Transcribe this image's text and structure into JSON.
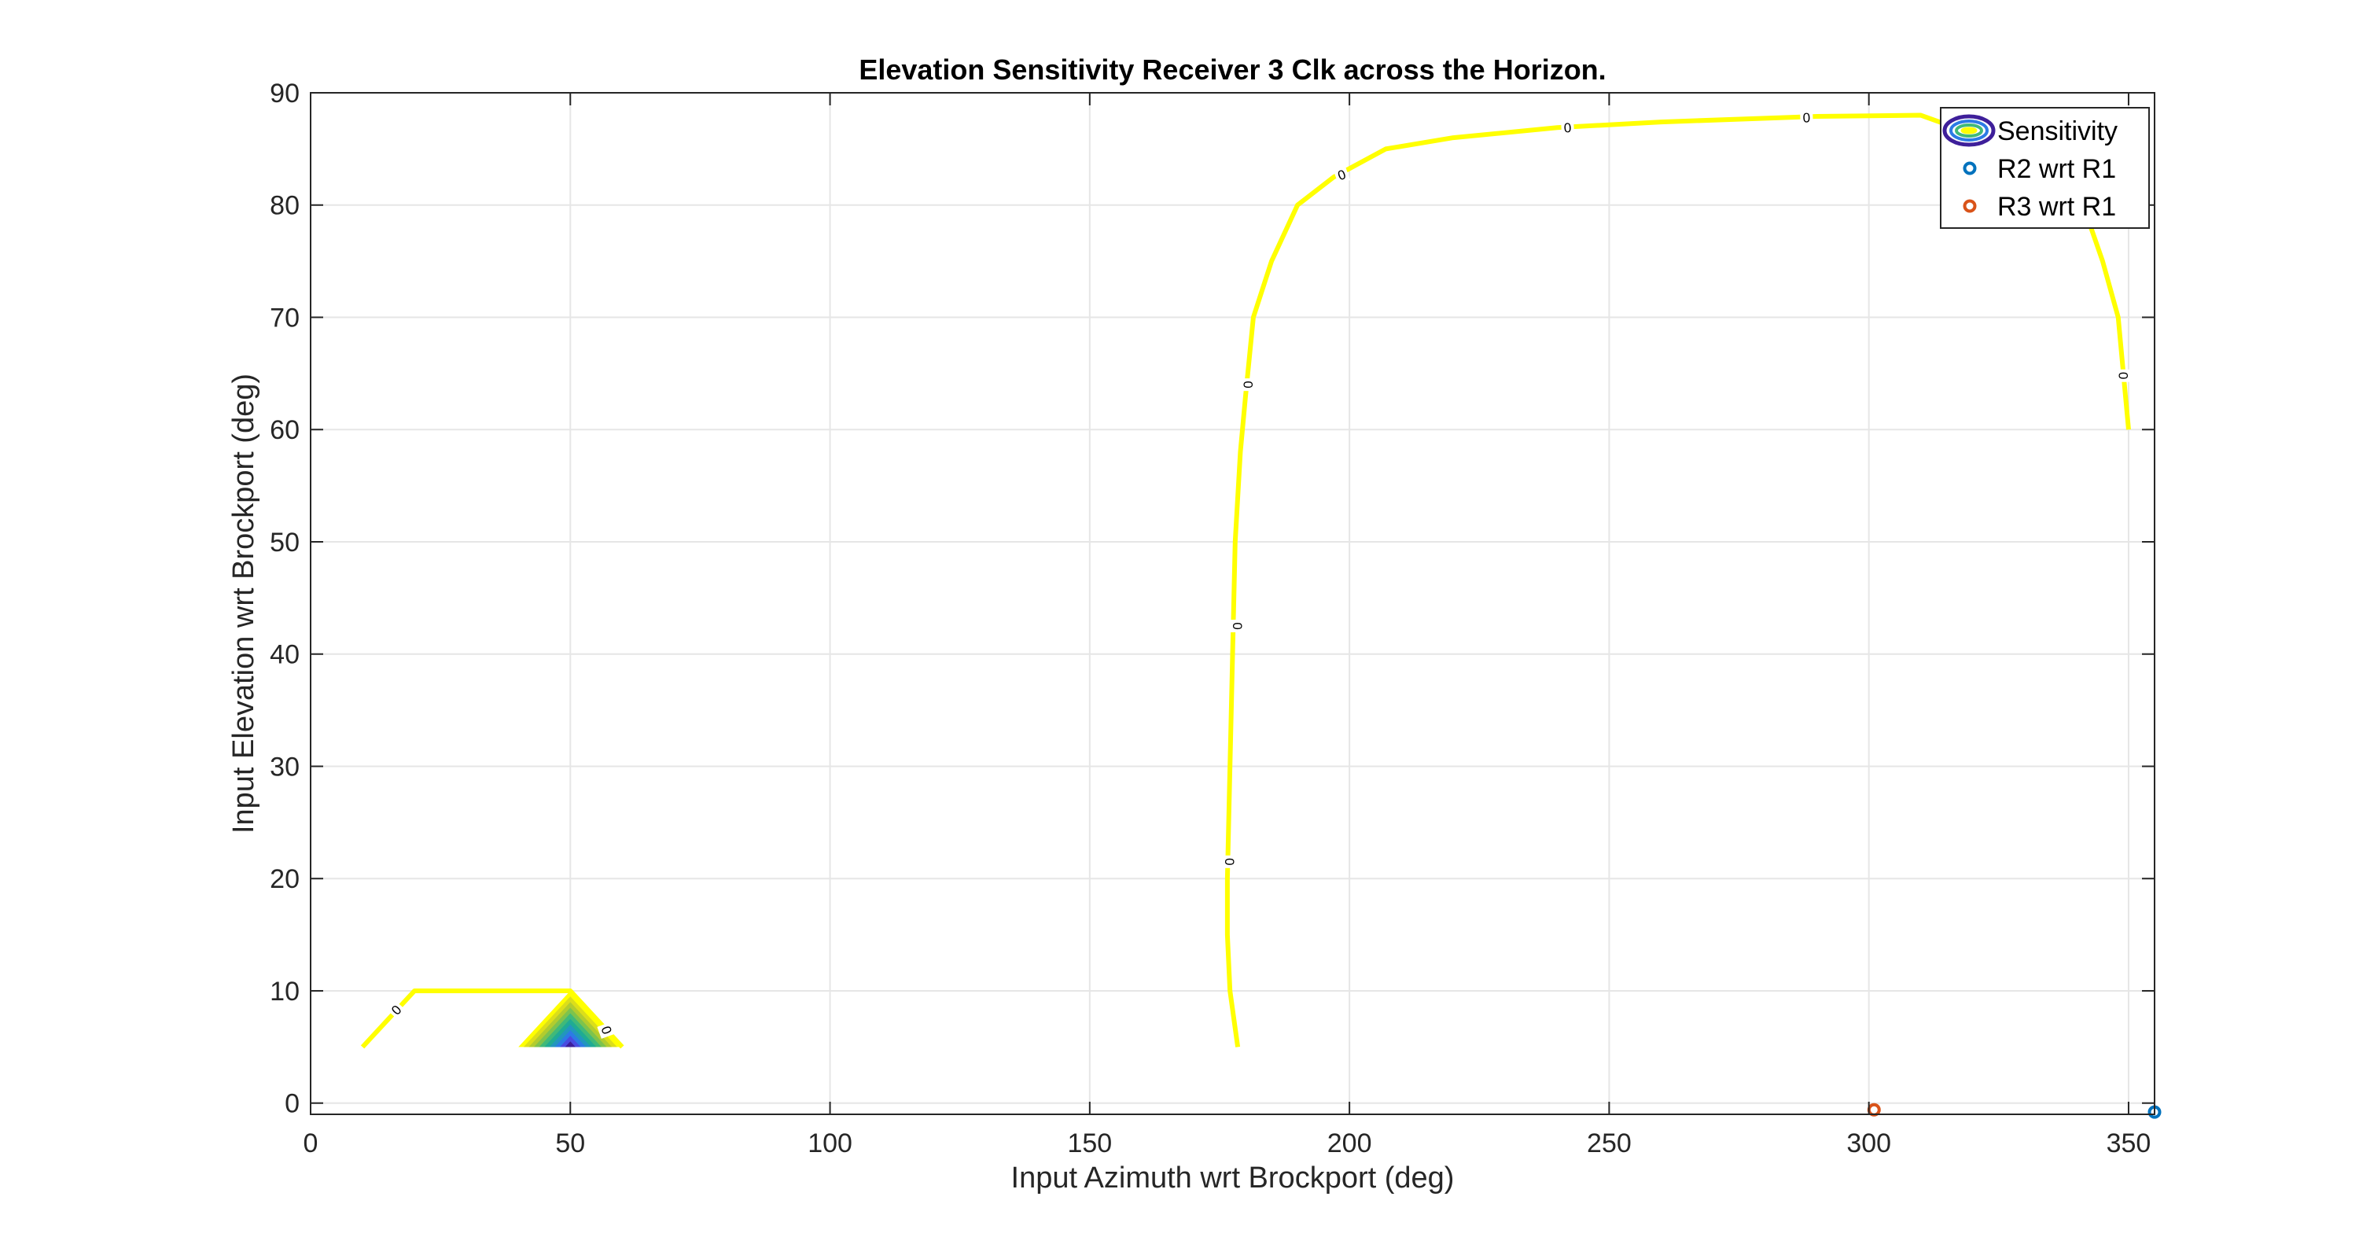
{
  "chart_data": {
    "type": "contour",
    "title": "Elevation Sensitivity Receiver 3 Clk across the Horizon.",
    "xlabel": "Input Azimuth wrt Brockport (deg)",
    "ylabel": "Input Elevation wrt Brockport (deg)",
    "xlim": [
      0,
      355
    ],
    "ylim": [
      -1,
      90
    ],
    "xticks": [
      0,
      50,
      100,
      150,
      200,
      250,
      300,
      350
    ],
    "yticks": [
      0,
      10,
      20,
      30,
      40,
      50,
      60,
      70,
      80,
      90
    ],
    "grid": true,
    "legend_location": "top-right",
    "legend": [
      {
        "label": "Sensitivity",
        "marker": "contour-icon"
      },
      {
        "label": "R2 wrt R1",
        "marker": "circle",
        "color": "#0072BD"
      },
      {
        "label": "R3 wrt R1",
        "marker": "circle",
        "color": "#D95319"
      }
    ],
    "colors": {
      "zero_contour": "#FFFF00",
      "r2": "#0072BD",
      "r3": "#D95319",
      "grid": "#E6E6E6",
      "axes": "#262626"
    },
    "contour_lines": [
      {
        "level": 0,
        "points": [
          [
            10,
            5
          ],
          [
            20,
            10
          ],
          [
            50,
            10
          ],
          [
            60,
            5
          ]
        ]
      },
      {
        "level": 0,
        "points": [
          [
            178.5,
            5
          ],
          [
            177,
            10
          ],
          [
            176.5,
            15
          ],
          [
            176.5,
            20
          ],
          [
            177,
            30
          ],
          [
            177.5,
            40
          ],
          [
            178,
            50
          ],
          [
            179,
            58
          ],
          [
            180,
            63
          ],
          [
            181.5,
            70
          ],
          [
            185,
            75
          ],
          [
            190,
            80
          ],
          [
            197,
            82.5
          ],
          [
            207,
            85
          ],
          [
            220,
            86
          ],
          [
            240,
            86.9
          ],
          [
            260,
            87.4
          ],
          [
            290,
            87.9
          ],
          [
            310,
            88
          ],
          [
            316,
            87
          ],
          [
            330,
            85.5
          ],
          [
            342,
            79
          ],
          [
            345,
            75
          ],
          [
            348,
            70
          ],
          [
            349,
            65
          ],
          [
            350,
            60
          ]
        ]
      }
    ],
    "filled_triangle": {
      "apex": [
        50,
        10
      ],
      "base_y": 5,
      "base_x": [
        40,
        60
      ],
      "levels": 10,
      "palette": [
        "#FFFF00",
        "#DCDE1A",
        "#B2CC2E",
        "#7DC34D",
        "#40B979",
        "#1FAB94",
        "#2296BE",
        "#2C7BE5",
        "#4A4CE0",
        "#3E1F9A"
      ]
    },
    "contour_labels": [
      {
        "text": "0",
        "x": 16.5,
        "y": 8.3,
        "angle": -48
      },
      {
        "text": "0",
        "x": 57,
        "y": 6.5,
        "angle": 70
      },
      {
        "text": "0",
        "x": 177,
        "y": 21.5,
        "angle": 90
      },
      {
        "text": "0",
        "x": 178.5,
        "y": 42.5,
        "angle": 90
      },
      {
        "text": "0",
        "x": 180.5,
        "y": 64,
        "angle": 90
      },
      {
        "text": "0",
        "x": 198.5,
        "y": 82.7,
        "angle": -20
      },
      {
        "text": "0",
        "x": 242,
        "y": 86.9,
        "angle": -3
      },
      {
        "text": "0",
        "x": 288,
        "y": 87.8,
        "angle": -2
      },
      {
        "text": "0",
        "x": 349,
        "y": 64.8,
        "angle": 90
      }
    ],
    "markers": [
      {
        "name": "R2 wrt R1",
        "x": 355,
        "y": -0.8,
        "color": "#0072BD"
      },
      {
        "name": "R3 wrt R1",
        "x": 301,
        "y": -0.6,
        "color": "#D95319"
      }
    ]
  }
}
